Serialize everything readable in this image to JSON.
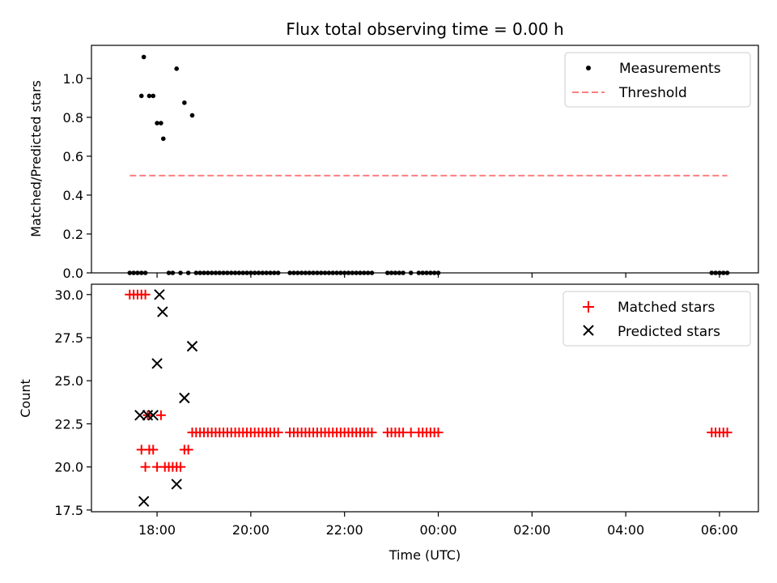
{
  "chart_data": [
    {
      "type": "scatter",
      "title": "Flux total observing time = 0.00 h",
      "xlabel": "",
      "ylabel": "Matched/Predicted stars",
      "ylim": [
        0,
        1.17
      ],
      "yticks": [
        "0.0",
        "0.2",
        "0.4",
        "0.6",
        "0.8",
        "1.0"
      ],
      "legend_position": "top-right",
      "threshold": {
        "name": "Threshold",
        "value": 0.5,
        "x_start": "17:25",
        "x_end": "06:10",
        "color": "#ff7f7f"
      },
      "series": [
        {
          "name": "Measurements",
          "color": "#000000",
          "marker": "dot",
          "points": [
            [
              "17:25",
              0
            ],
            [
              "17:30",
              0
            ],
            [
              "17:35",
              0
            ],
            [
              "17:40",
              0
            ],
            [
              "17:45",
              0
            ],
            [
              "17:40",
              0.91
            ],
            [
              "17:43",
              1.11
            ],
            [
              "17:50",
              0.91
            ],
            [
              "17:55",
              0.91
            ],
            [
              "18:00",
              0.77
            ],
            [
              "18:05",
              0.77
            ],
            [
              "18:08",
              0.69
            ],
            [
              "18:15",
              0
            ],
            [
              "18:20",
              0
            ],
            [
              "18:25",
              1.05
            ],
            [
              "18:30",
              0
            ],
            [
              "18:35",
              0.875
            ],
            [
              "18:40",
              0
            ],
            [
              "18:45",
              0.81
            ],
            [
              "18:50",
              0
            ],
            [
              "18:55",
              0
            ],
            [
              "19:00",
              0
            ],
            [
              "19:05",
              0
            ],
            [
              "19:10",
              0
            ],
            [
              "19:15",
              0
            ],
            [
              "19:20",
              0
            ],
            [
              "19:25",
              0
            ],
            [
              "19:30",
              0
            ],
            [
              "19:35",
              0
            ],
            [
              "19:40",
              0
            ],
            [
              "19:45",
              0
            ],
            [
              "19:50",
              0
            ],
            [
              "19:55",
              0
            ],
            [
              "20:00",
              0
            ],
            [
              "20:05",
              0
            ],
            [
              "20:10",
              0
            ],
            [
              "20:15",
              0
            ],
            [
              "20:20",
              0
            ],
            [
              "20:25",
              0
            ],
            [
              "20:30",
              0
            ],
            [
              "20:35",
              0
            ],
            [
              "20:50",
              0
            ],
            [
              "20:55",
              0
            ],
            [
              "21:00",
              0
            ],
            [
              "21:05",
              0
            ],
            [
              "21:10",
              0
            ],
            [
              "21:15",
              0
            ],
            [
              "21:20",
              0
            ],
            [
              "21:25",
              0
            ],
            [
              "21:30",
              0
            ],
            [
              "21:35",
              0
            ],
            [
              "21:40",
              0
            ],
            [
              "21:45",
              0
            ],
            [
              "21:50",
              0
            ],
            [
              "21:55",
              0
            ],
            [
              "22:00",
              0
            ],
            [
              "22:05",
              0
            ],
            [
              "22:10",
              0
            ],
            [
              "22:15",
              0
            ],
            [
              "22:20",
              0
            ],
            [
              "22:25",
              0
            ],
            [
              "22:30",
              0
            ],
            [
              "22:35",
              0
            ],
            [
              "22:55",
              0
            ],
            [
              "23:00",
              0
            ],
            [
              "23:05",
              0
            ],
            [
              "23:10",
              0
            ],
            [
              "23:15",
              0
            ],
            [
              "23:25",
              0
            ],
            [
              "23:35",
              0
            ],
            [
              "23:40",
              0
            ],
            [
              "23:45",
              0
            ],
            [
              "23:50",
              0
            ],
            [
              "23:55",
              0
            ],
            [
              "00:00",
              0
            ],
            [
              "05:50",
              0
            ],
            [
              "05:55",
              0
            ],
            [
              "06:00",
              0
            ],
            [
              "06:05",
              0
            ],
            [
              "06:10",
              0
            ]
          ]
        }
      ]
    },
    {
      "type": "scatter",
      "title": "",
      "xlabel": "Time (UTC)",
      "ylabel": "Count",
      "ylim": [
        17.4,
        30.6
      ],
      "yticks": [
        "17.5",
        "20.0",
        "22.5",
        "25.0",
        "27.5",
        "30.0"
      ],
      "xticks": [
        "18:00",
        "20:00",
        "22:00",
        "00:00",
        "02:00",
        "04:00",
        "06:00"
      ],
      "legend_position": "top-right",
      "series": [
        {
          "name": "Matched stars",
          "color": "#ff0000",
          "marker": "plus",
          "points": [
            [
              "17:25",
              30
            ],
            [
              "17:30",
              30
            ],
            [
              "17:35",
              30
            ],
            [
              "17:40",
              30
            ],
            [
              "17:45",
              30
            ],
            [
              "17:40",
              21
            ],
            [
              "17:45",
              20
            ],
            [
              "17:50",
              21
            ],
            [
              "17:55",
              21
            ],
            [
              "17:48",
              23
            ],
            [
              "18:00",
              20
            ],
            [
              "18:05",
              23
            ],
            [
              "18:10",
              20
            ],
            [
              "18:15",
              20
            ],
            [
              "18:20",
              20
            ],
            [
              "18:25",
              20
            ],
            [
              "18:30",
              20
            ],
            [
              "18:35",
              21
            ],
            [
              "18:40",
              21
            ],
            [
              "18:45",
              22
            ],
            [
              "18:50",
              22
            ],
            [
              "18:55",
              22
            ],
            [
              "19:00",
              22
            ],
            [
              "19:05",
              22
            ],
            [
              "19:10",
              22
            ],
            [
              "19:15",
              22
            ],
            [
              "19:20",
              22
            ],
            [
              "19:25",
              22
            ],
            [
              "19:30",
              22
            ],
            [
              "19:35",
              22
            ],
            [
              "19:40",
              22
            ],
            [
              "19:45",
              22
            ],
            [
              "19:50",
              22
            ],
            [
              "19:55",
              22
            ],
            [
              "20:00",
              22
            ],
            [
              "20:05",
              22
            ],
            [
              "20:10",
              22
            ],
            [
              "20:15",
              22
            ],
            [
              "20:20",
              22
            ],
            [
              "20:25",
              22
            ],
            [
              "20:30",
              22
            ],
            [
              "20:35",
              22
            ],
            [
              "20:50",
              22
            ],
            [
              "20:55",
              22
            ],
            [
              "21:00",
              22
            ],
            [
              "21:05",
              22
            ],
            [
              "21:10",
              22
            ],
            [
              "21:15",
              22
            ],
            [
              "21:20",
              22
            ],
            [
              "21:25",
              22
            ],
            [
              "21:30",
              22
            ],
            [
              "21:35",
              22
            ],
            [
              "21:40",
              22
            ],
            [
              "21:45",
              22
            ],
            [
              "21:50",
              22
            ],
            [
              "21:55",
              22
            ],
            [
              "22:00",
              22
            ],
            [
              "22:05",
              22
            ],
            [
              "22:10",
              22
            ],
            [
              "22:15",
              22
            ],
            [
              "22:20",
              22
            ],
            [
              "22:25",
              22
            ],
            [
              "22:30",
              22
            ],
            [
              "22:35",
              22
            ],
            [
              "22:55",
              22
            ],
            [
              "23:00",
              22
            ],
            [
              "23:05",
              22
            ],
            [
              "23:10",
              22
            ],
            [
              "23:15",
              22
            ],
            [
              "23:25",
              22
            ],
            [
              "23:35",
              22
            ],
            [
              "23:40",
              22
            ],
            [
              "23:45",
              22
            ],
            [
              "23:50",
              22
            ],
            [
              "23:55",
              22
            ],
            [
              "00:00",
              22
            ],
            [
              "05:50",
              22
            ],
            [
              "05:55",
              22
            ],
            [
              "06:00",
              22
            ],
            [
              "06:05",
              22
            ],
            [
              "06:10",
              22
            ]
          ]
        },
        {
          "name": "Predicted stars",
          "color": "#000000",
          "marker": "x",
          "points": [
            [
              "17:38",
              23
            ],
            [
              "17:43",
              18
            ],
            [
              "17:48",
              23
            ],
            [
              "17:55",
              23
            ],
            [
              "18:00",
              26
            ],
            [
              "18:03",
              30
            ],
            [
              "18:07",
              29
            ],
            [
              "18:25",
              19
            ],
            [
              "18:35",
              24
            ],
            [
              "18:45",
              27
            ]
          ]
        }
      ]
    }
  ]
}
